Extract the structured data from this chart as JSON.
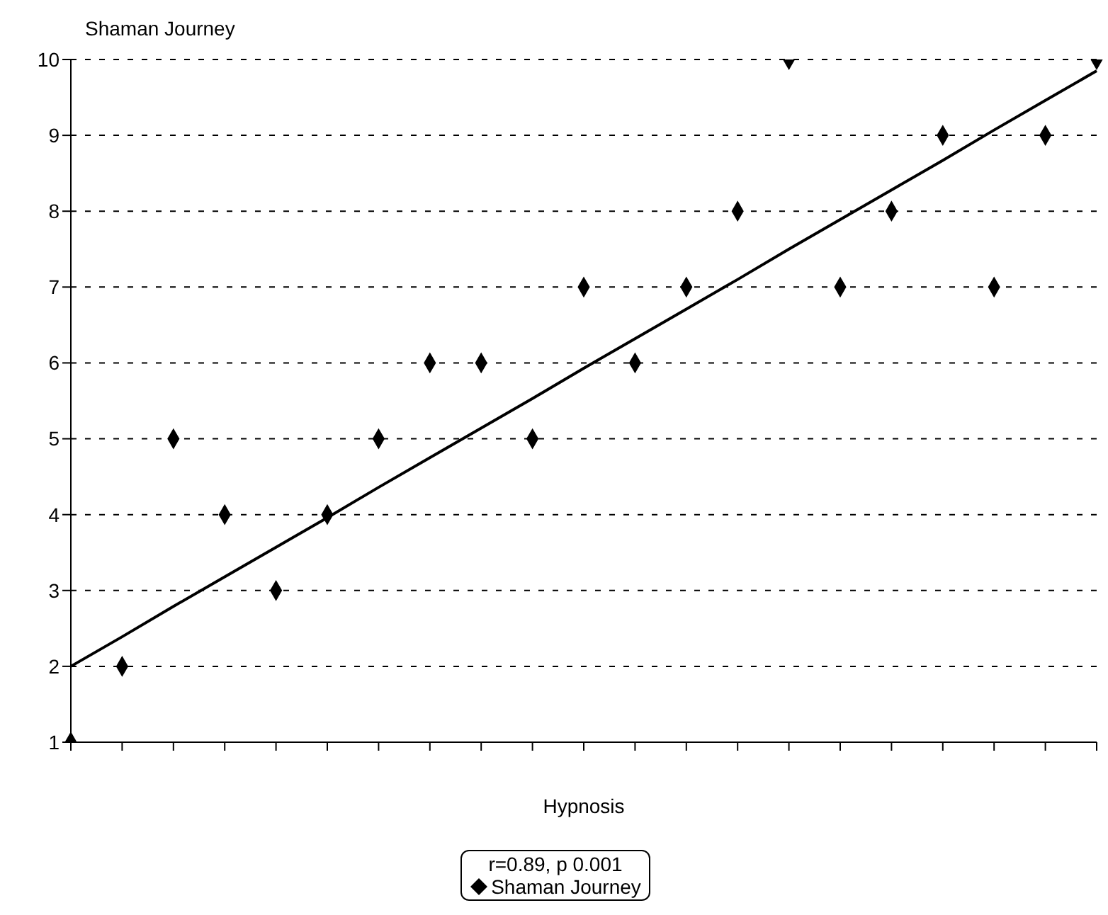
{
  "chart_data": {
    "type": "scatter",
    "xlabel": "Hypnosis",
    "ylabel": "Shaman Journey",
    "categories": [
      null,
      null,
      null,
      null,
      null,
      null,
      null,
      null,
      null,
      null,
      null,
      null,
      null,
      null,
      null,
      null,
      null,
      null,
      null,
      null,
      null
    ],
    "series": [
      {
        "name": "Shaman Journey",
        "color": "#000000",
        "marker": "diamond",
        "values": [
          1,
          2,
          5,
          4,
          3,
          4,
          5,
          6,
          6,
          5,
          7,
          6,
          7,
          8,
          10,
          7,
          8,
          9,
          7,
          9,
          10
        ]
      },
      {
        "type": "line",
        "color": "#000000",
        "line_style": "solid",
        "marker": "none",
        "values": [
          2.0,
          2.39,
          2.79,
          3.18,
          3.57,
          3.96,
          4.36,
          4.75,
          5.14,
          5.53,
          5.93,
          6.32,
          6.71,
          7.1,
          7.5,
          7.89,
          8.28,
          8.67,
          9.07,
          9.46,
          9.85
        ]
      }
    ],
    "ylim": [
      1,
      10
    ],
    "yticks": [
      1,
      2,
      3,
      4,
      5,
      6,
      7,
      8,
      9,
      10
    ],
    "grid": "y",
    "legend": "bottom",
    "annotations": [
      "r=0.89, p 0.001"
    ]
  }
}
